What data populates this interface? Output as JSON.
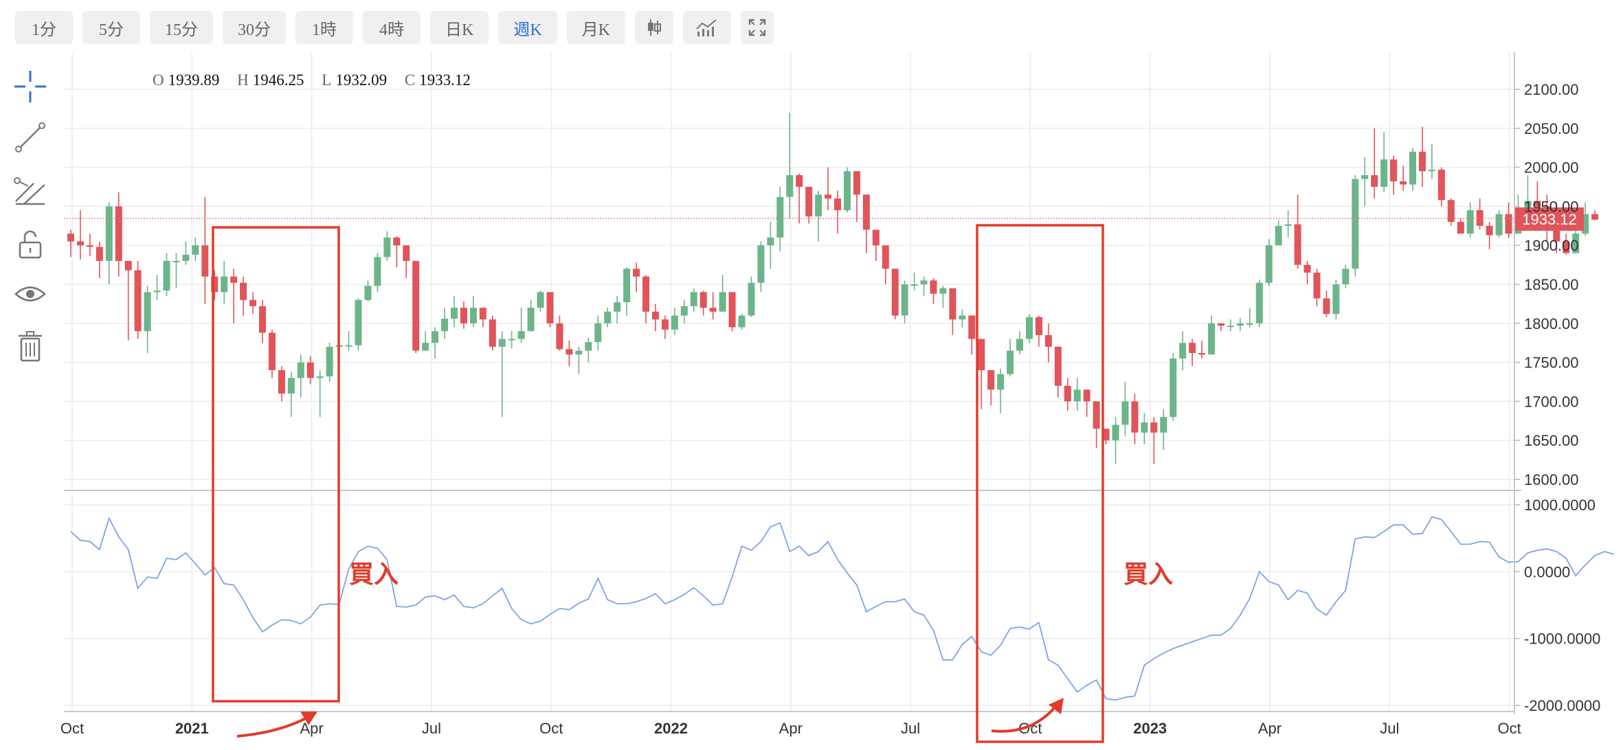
{
  "toolbar": {
    "timeframes": [
      {
        "label": "1分",
        "active": false
      },
      {
        "label": "5分",
        "active": false
      },
      {
        "label": "15分",
        "active": false
      },
      {
        "label": "30分",
        "active": false
      },
      {
        "label": "1時",
        "active": false
      },
      {
        "label": "4時",
        "active": false
      },
      {
        "label": "日K",
        "active": false
      },
      {
        "label": "週K",
        "active": true
      },
      {
        "label": "月K",
        "active": false
      }
    ],
    "tools": [
      "candlestick-type-icon",
      "indicator-chart-icon",
      "fullscreen-icon"
    ]
  },
  "side_tools": [
    "crosshair-icon",
    "trend-line-icon",
    "multi-line-icon",
    "unlock-icon",
    "eye-icon",
    "trash-icon"
  ],
  "ohlc": {
    "o_label": "O",
    "o": "1939.89",
    "h_label": "H",
    "h": "1946.25",
    "l_label": "L",
    "l": "1932.09",
    "c_label": "C",
    "c": "1933.12"
  },
  "colors": {
    "up": "#6cb58a",
    "down": "#e0545a",
    "line": "#7fa2e8",
    "annotation": "#e23b2a",
    "accent": "#2f6fd6"
  },
  "annotations": [
    {
      "text": "買入"
    },
    {
      "text": "買入"
    }
  ],
  "chart_data": [
    {
      "type": "candlestick",
      "interval": "weekly",
      "x_tick_labels": [
        "Oct",
        "2021",
        "Apr",
        "Jul",
        "Oct",
        "2022",
        "Apr",
        "Jul",
        "Oct",
        "2023",
        "Apr",
        "Jul",
        "Oct"
      ],
      "y_tick_labels": [
        "2100.00",
        "2050.00",
        "2000.00",
        "1950.00",
        "1900.00",
        "1850.00",
        "1800.00",
        "1750.00",
        "1700.00",
        "1650.00",
        "1600.00"
      ],
      "ylim": [
        1590,
        2115
      ],
      "last_price": "1933.12",
      "close": [
        1905,
        1900,
        1898,
        1880,
        1950,
        1880,
        1868,
        1790,
        1840,
        1842,
        1880,
        1880,
        1888,
        1900,
        1860,
        1840,
        1860,
        1852,
        1830,
        1822,
        1788,
        1740,
        1710,
        1730,
        1750,
        1730,
        1732,
        1770,
        1772,
        1772,
        1830,
        1848,
        1885,
        1910,
        1900,
        1880,
        1765,
        1775,
        1790,
        1806,
        1820,
        1800,
        1820,
        1805,
        1770,
        1780,
        1780,
        1790,
        1820,
        1840,
        1800,
        1767,
        1760,
        1765,
        1776,
        1800,
        1815,
        1827,
        1870,
        1860,
        1815,
        1805,
        1792,
        1810,
        1822,
        1840,
        1820,
        1815,
        1840,
        1795,
        1810,
        1852,
        1900,
        1910,
        1962,
        1990,
        1975,
        1937,
        1965,
        1960,
        1945,
        1995,
        1965,
        1920,
        1900,
        1870,
        1810,
        1850,
        1850,
        1855,
        1838,
        1845,
        1805,
        1810,
        1780,
        1740,
        1715,
        1735,
        1765,
        1780,
        1808,
        1785,
        1770,
        1720,
        1700,
        1715,
        1700,
        1665,
        1650,
        1670,
        1700,
        1660,
        1673,
        1660,
        1680,
        1755,
        1775,
        1762,
        1760,
        1800,
        1797,
        1797,
        1800,
        1800,
        1852,
        1900,
        1925,
        1927,
        1875,
        1865,
        1832,
        1812,
        1850,
        1870,
        1985,
        1990,
        1975,
        2010,
        1982,
        1978,
        2020,
        1995,
        1997,
        1958,
        1930,
        1915,
        1945,
        1925,
        1913,
        1940,
        1915,
        1935,
        1957,
        1950,
        1940,
        1905,
        1890,
        1915,
        1940,
        1933
      ],
      "high": [
        1920,
        1945,
        1915,
        1905,
        1955,
        1968,
        1880,
        1880,
        1848,
        1862,
        1890,
        1890,
        1905,
        1910,
        1962,
        1868,
        1880,
        1870,
        1860,
        1840,
        1830,
        1792,
        1745,
        1738,
        1760,
        1758,
        1740,
        1775,
        1780,
        1790,
        1832,
        1855,
        1890,
        1918,
        1912,
        1890,
        1880,
        1790,
        1795,
        1820,
        1835,
        1828,
        1835,
        1820,
        1810,
        1790,
        1790,
        1820,
        1830,
        1842,
        1835,
        1810,
        1778,
        1770,
        1782,
        1810,
        1820,
        1835,
        1872,
        1878,
        1862,
        1825,
        1810,
        1820,
        1830,
        1845,
        1842,
        1840,
        1862,
        1830,
        1812,
        1860,
        1905,
        1930,
        1975,
        2070,
        1992,
        1975,
        1970,
        2000,
        1970,
        2000,
        1972,
        1930,
        1910,
        1875,
        1840,
        1855,
        1865,
        1860,
        1858,
        1848,
        1815,
        1818,
        1790,
        1745,
        1730,
        1742,
        1780,
        1790,
        1812,
        1810,
        1800,
        1770,
        1730,
        1730,
        1710,
        1690,
        1665,
        1680,
        1725,
        1710,
        1685,
        1680,
        1690,
        1762,
        1790,
        1780,
        1778,
        1810,
        1800,
        1805,
        1807,
        1820,
        1856,
        1908,
        1932,
        1945,
        1965,
        1880,
        1870,
        1842,
        1856,
        1875,
        1990,
        2013,
        2050,
        2045,
        2015,
        2002,
        2025,
        2052,
        2030,
        2000,
        1960,
        1935,
        1955,
        1960,
        1930,
        1945,
        1955,
        1965,
        1990,
        1982,
        1965,
        1955,
        1915,
        1925,
        1955,
        1945
      ],
      "low": [
        1885,
        1882,
        1886,
        1858,
        1850,
        1860,
        1778,
        1780,
        1762,
        1830,
        1835,
        1845,
        1875,
        1880,
        1825,
        1830,
        1825,
        1800,
        1810,
        1812,
        1775,
        1730,
        1700,
        1680,
        1705,
        1722,
        1680,
        1725,
        1752,
        1765,
        1765,
        1828,
        1840,
        1880,
        1872,
        1858,
        1762,
        1765,
        1755,
        1780,
        1795,
        1793,
        1795,
        1795,
        1765,
        1680,
        1768,
        1775,
        1795,
        1815,
        1795,
        1765,
        1745,
        1735,
        1750,
        1765,
        1795,
        1800,
        1810,
        1840,
        1800,
        1790,
        1780,
        1785,
        1800,
        1815,
        1810,
        1805,
        1815,
        1790,
        1792,
        1808,
        1840,
        1870,
        1892,
        1935,
        1928,
        1928,
        1905,
        1945,
        1915,
        1942,
        1930,
        1890,
        1880,
        1850,
        1805,
        1800,
        1842,
        1835,
        1825,
        1820,
        1785,
        1795,
        1760,
        1690,
        1695,
        1685,
        1732,
        1760,
        1775,
        1770,
        1750,
        1705,
        1688,
        1688,
        1680,
        1640,
        1645,
        1620,
        1655,
        1645,
        1645,
        1620,
        1638,
        1675,
        1740,
        1745,
        1755,
        1785,
        1790,
        1790,
        1790,
        1795,
        1795,
        1848,
        1900,
        1910,
        1870,
        1850,
        1822,
        1808,
        1805,
        1845,
        1860,
        1950,
        1960,
        1968,
        1965,
        1970,
        1970,
        1975,
        1985,
        1950,
        1925,
        1915,
        1910,
        1920,
        1895,
        1910,
        1910,
        1915,
        1935,
        1940,
        1905,
        1890,
        1888,
        1895,
        1912,
        1932
      ]
    },
    {
      "type": "line",
      "y_tick_labels": [
        "1000.0000",
        "0.0000",
        "-1000.0000",
        "-2000.0000"
      ],
      "ylim": [
        -2150,
        1080
      ],
      "values": [
        600,
        470,
        450,
        330,
        800,
        520,
        330,
        -250,
        -80,
        -100,
        200,
        180,
        280,
        120,
        -50,
        60,
        -180,
        -200,
        -420,
        -690,
        -900,
        -800,
        -720,
        -730,
        -780,
        -680,
        -500,
        -480,
        -490,
        40,
        300,
        380,
        350,
        180,
        -520,
        -530,
        -500,
        -380,
        -360,
        -420,
        -350,
        -520,
        -540,
        -480,
        -360,
        -250,
        -550,
        -720,
        -780,
        -740,
        -640,
        -550,
        -570,
        -470,
        -410,
        -100,
        -420,
        -480,
        -480,
        -450,
        -400,
        -330,
        -480,
        -420,
        -340,
        -240,
        -360,
        -500,
        -480,
        -80,
        380,
        320,
        450,
        670,
        730,
        300,
        380,
        240,
        300,
        450,
        180,
        -20,
        -200,
        -600,
        -520,
        -450,
        -450,
        -410,
        -600,
        -650,
        -880,
        -1320,
        -1320,
        -1090,
        -970,
        -1200,
        -1250,
        -1100,
        -850,
        -830,
        -860,
        -760,
        -1320,
        -1400,
        -1600,
        -1800,
        -1700,
        -1620,
        -1900,
        -1920,
        -1880,
        -1860,
        -1400,
        -1300,
        -1220,
        -1150,
        -1100,
        -1050,
        -1000,
        -950,
        -950,
        -850,
        -650,
        -400,
        0,
        -150,
        -200,
        -420,
        -280,
        -320,
        -560,
        -650,
        -450,
        -280,
        490,
        520,
        510,
        600,
        700,
        700,
        560,
        570,
        820,
        780,
        600,
        410,
        410,
        450,
        440,
        220,
        140,
        150,
        280,
        320,
        340,
        300,
        200,
        -60,
        100,
        240,
        300,
        260
      ]
    }
  ]
}
